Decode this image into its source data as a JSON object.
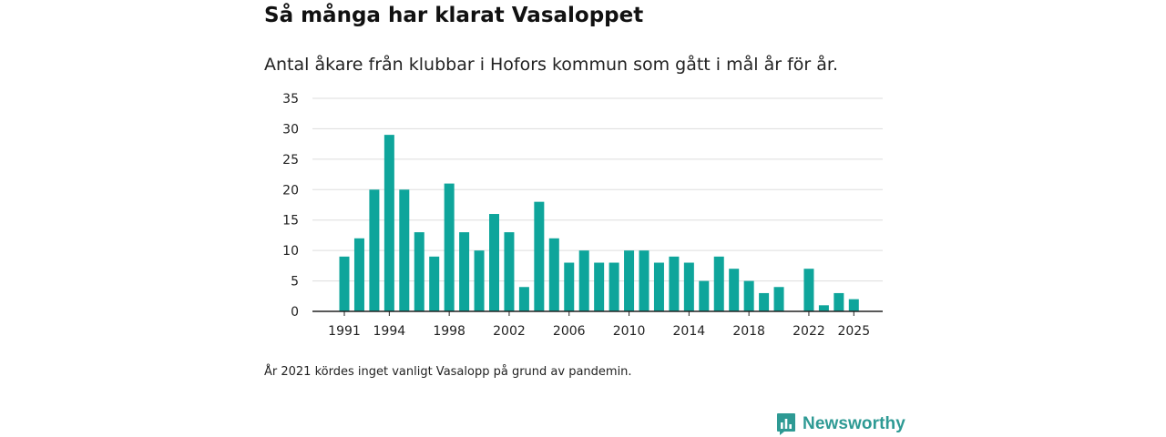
{
  "colors": {
    "bar": "#0ea59b",
    "grid": "#dddddd",
    "axis": "#222222",
    "brand": "#2e9a94"
  },
  "chart_data": {
    "type": "bar",
    "title": "Så många har klarat Vasaloppet",
    "subtitle": "Antal åkare från klubbar i Hofors kommun som gått i mål år för år.",
    "xlabel": "",
    "ylabel": "",
    "ylim": [
      0,
      35
    ],
    "yticks": [
      0,
      5,
      10,
      15,
      20,
      25,
      30,
      35
    ],
    "xtick_labels": [
      "1991",
      "1994",
      "1998",
      "2002",
      "2006",
      "2010",
      "2014",
      "2018",
      "2022",
      "2025"
    ],
    "categories": [
      1991,
      1992,
      1993,
      1994,
      1995,
      1996,
      1997,
      1998,
      1999,
      2000,
      2001,
      2002,
      2003,
      2004,
      2005,
      2006,
      2007,
      2008,
      2009,
      2010,
      2011,
      2012,
      2013,
      2014,
      2015,
      2016,
      2017,
      2018,
      2019,
      2020,
      2021,
      2022,
      2023,
      2024,
      2025
    ],
    "values": [
      9,
      12,
      20,
      29,
      20,
      13,
      9,
      21,
      13,
      10,
      16,
      13,
      4,
      18,
      12,
      8,
      10,
      8,
      8,
      10,
      10,
      8,
      9,
      8,
      5,
      9,
      7,
      5,
      3,
      4,
      0,
      7,
      1,
      3,
      2
    ],
    "grid": true,
    "legend": "none"
  },
  "footnote": "År 2021 kördes inget vanligt Vasalopp på grund av pandemin.",
  "brand": {
    "name": "Newsworthy",
    "icon": "newsworthy-logo-icon"
  }
}
